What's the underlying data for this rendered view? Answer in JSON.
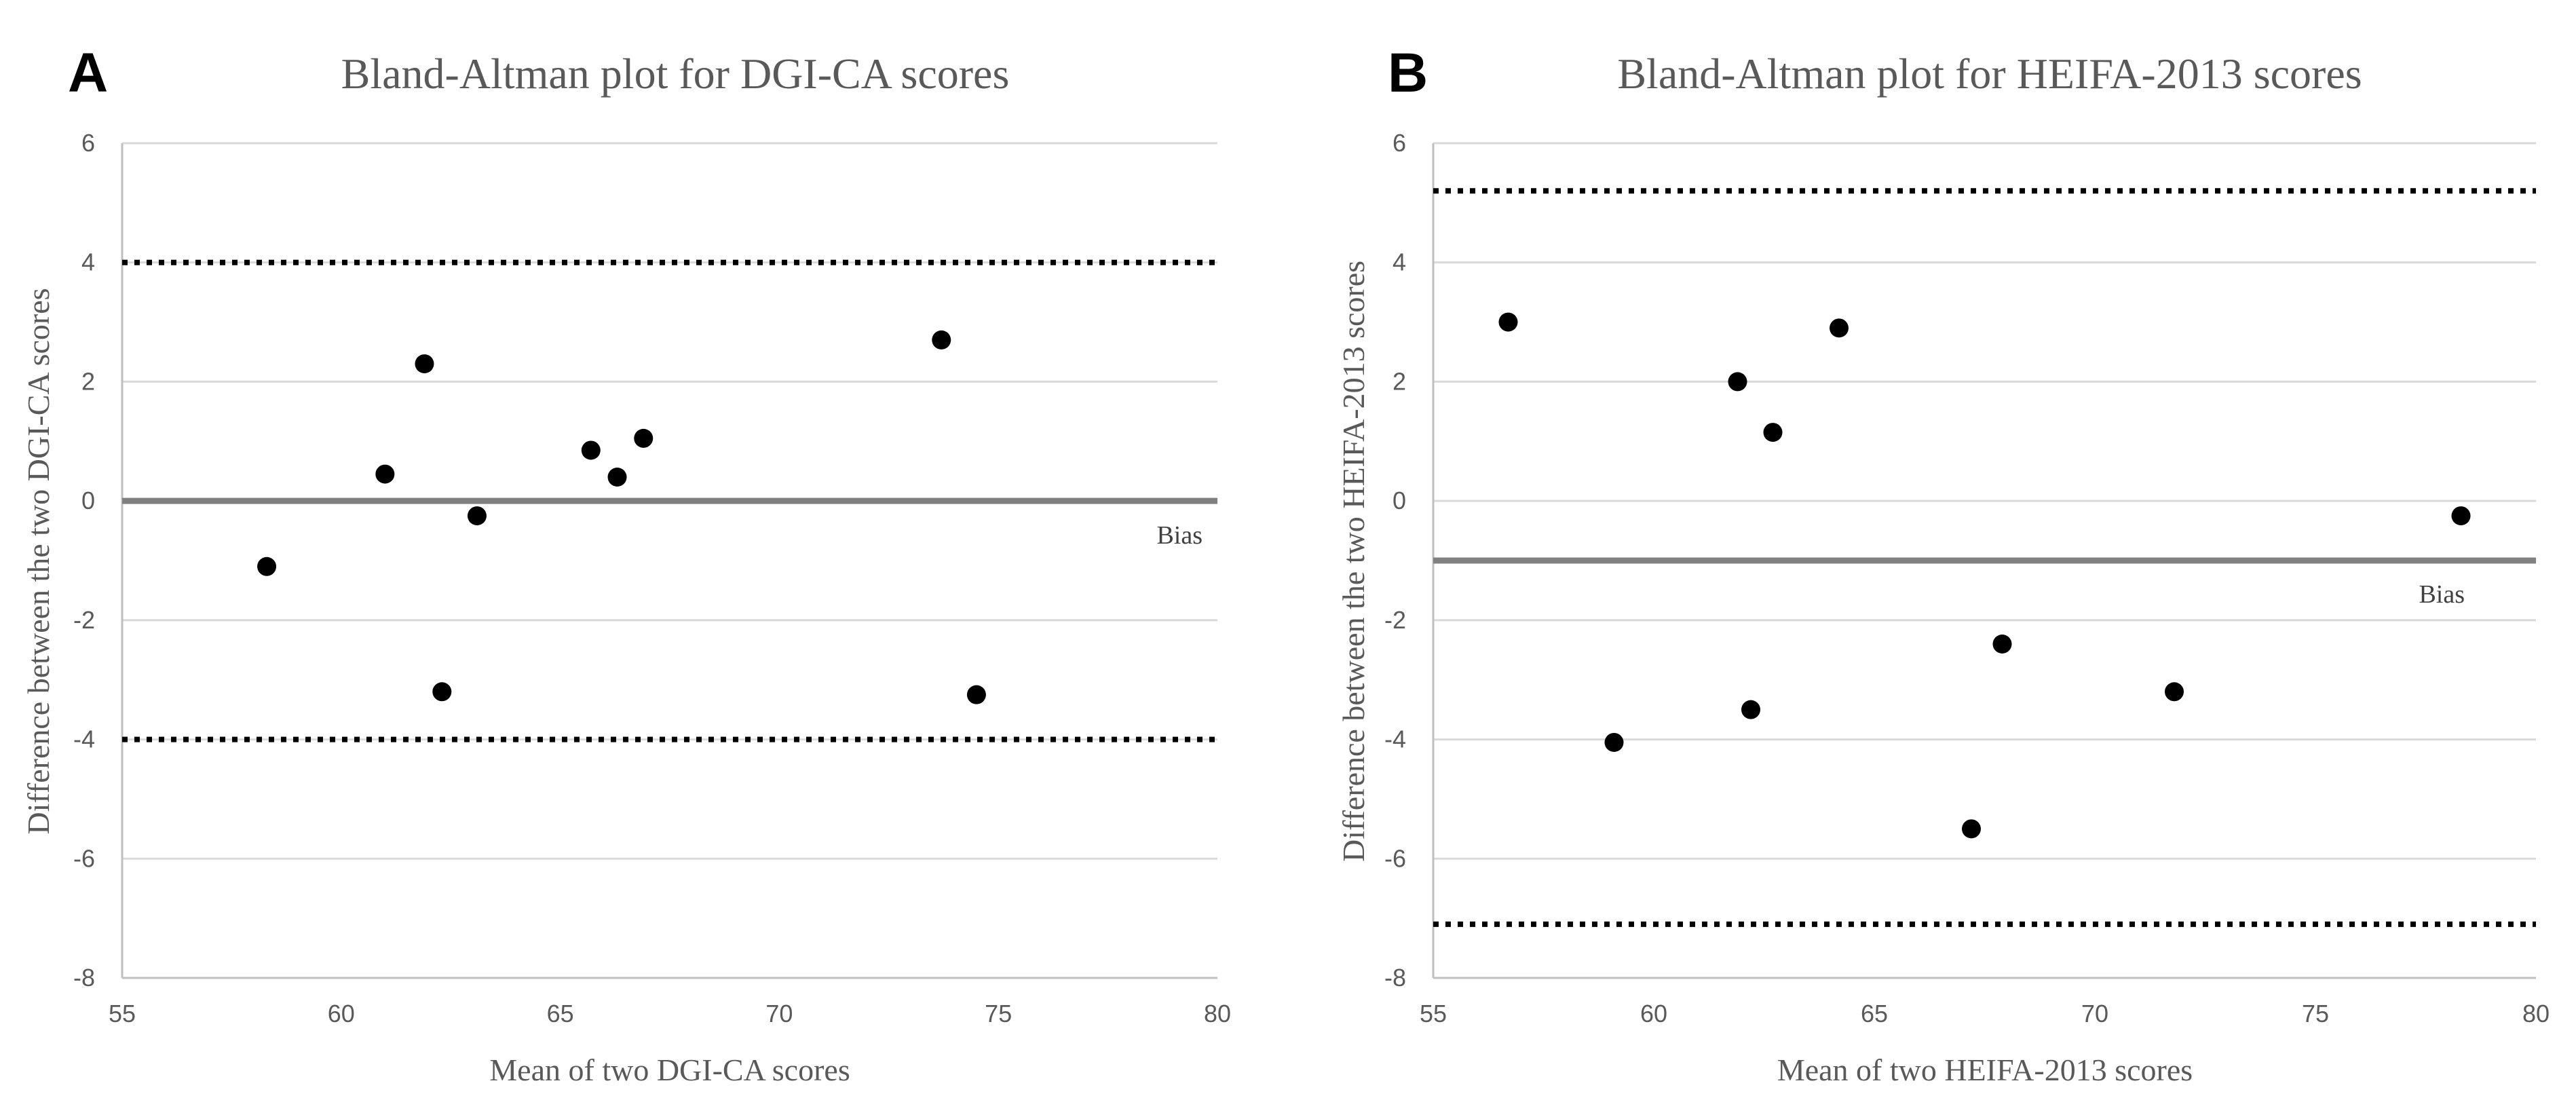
{
  "chart_data": [
    {
      "type": "scatter",
      "panel": "A",
      "title": "Bland-Altman plot for DGI-CA scores",
      "xlabel": "Mean of two DGI-CA scores",
      "ylabel": "Difference between the two DGI-CA scores",
      "xlim": [
        55,
        80
      ],
      "ylim": [
        -8,
        6
      ],
      "xticks": [
        55,
        60,
        65,
        70,
        75,
        80
      ],
      "yticks": [
        -8,
        -6,
        -4,
        -2,
        0,
        2,
        4,
        6
      ],
      "bias": 0,
      "loa_upper": 4,
      "loa_lower": -4,
      "bias_label": "Bias",
      "points": [
        {
          "x": 58.3,
          "y": -1.1
        },
        {
          "x": 61.0,
          "y": 0.45
        },
        {
          "x": 61.9,
          "y": 2.3
        },
        {
          "x": 62.3,
          "y": -3.2
        },
        {
          "x": 63.1,
          "y": -0.25
        },
        {
          "x": 65.7,
          "y": 0.85
        },
        {
          "x": 66.3,
          "y": 0.4
        },
        {
          "x": 66.9,
          "y": 1.05
        },
        {
          "x": 73.7,
          "y": 2.7
        },
        {
          "x": 74.5,
          "y": -3.25
        }
      ]
    },
    {
      "type": "scatter",
      "panel": "B",
      "title": "Bland-Altman plot for HEIFA-2013 scores",
      "xlabel": "Mean of two HEIFA-2013 scores",
      "ylabel": "Difference between the two HEIFA-2013 scores",
      "xlim": [
        55,
        80
      ],
      "ylim": [
        -8,
        6
      ],
      "xticks": [
        55,
        60,
        65,
        70,
        75,
        80
      ],
      "yticks": [
        -8,
        -6,
        -4,
        -2,
        0,
        2,
        4,
        6
      ],
      "bias": -1,
      "loa_upper": 5.2,
      "loa_lower": -7.1,
      "bias_label": "Bias",
      "points": [
        {
          "x": 56.7,
          "y": 3.0
        },
        {
          "x": 59.1,
          "y": -4.05
        },
        {
          "x": 61.9,
          "y": 2.0
        },
        {
          "x": 62.2,
          "y": -3.5
        },
        {
          "x": 62.7,
          "y": 1.15
        },
        {
          "x": 64.2,
          "y": 2.9
        },
        {
          "x": 67.2,
          "y": -5.5
        },
        {
          "x": 67.9,
          "y": -2.4
        },
        {
          "x": 71.8,
          "y": -3.2
        },
        {
          "x": 78.3,
          "y": -0.25
        }
      ]
    }
  ]
}
